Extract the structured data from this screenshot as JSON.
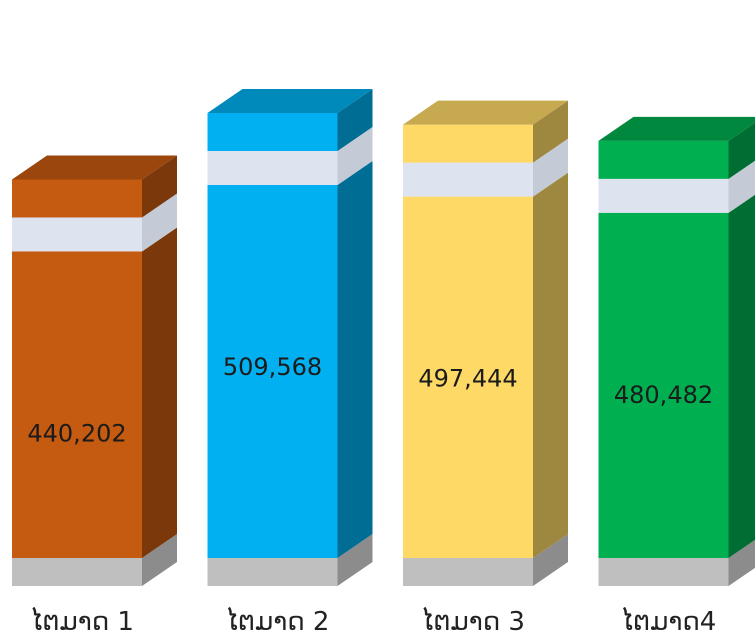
{
  "chart_data": {
    "type": "bar",
    "style": "3d-broken-axis",
    "categories": [
      "ໄຕມາດ 1",
      "ໄຕມາດ 2",
      "ໄຕມາດ 3",
      "ໄຕມາດ4"
    ],
    "values": [
      440202,
      509568,
      497444,
      480482
    ],
    "value_labels": [
      "440,202",
      "509,568",
      "497,444",
      "480,482"
    ],
    "title": "",
    "xlabel": "",
    "ylabel": "",
    "grid": false,
    "legend": "none",
    "colors": [
      "#c55a11",
      "#00b0f0",
      "#ffd966",
      "#00b050"
    ]
  }
}
